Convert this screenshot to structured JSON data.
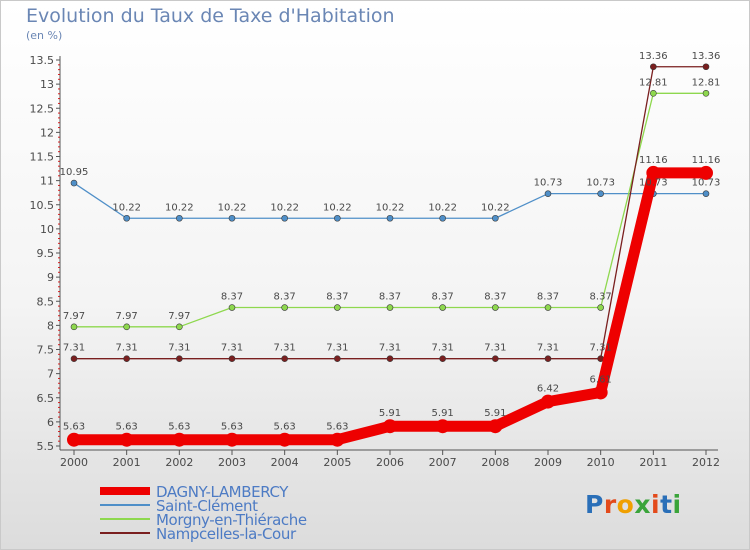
{
  "header": {
    "title": "Evolution du Taux de Taxe d'Habitation",
    "subtitle": "(en %)"
  },
  "brand": {
    "logo_text": "Proxiti",
    "letter_colors": [
      "#2a6fb8",
      "#e34a1b",
      "#f0a000",
      "#3aa43a",
      "#e34a1b",
      "#2a6fb8",
      "#3aa43a"
    ]
  },
  "colors": {
    "axis": "#555555",
    "grid_tick_red": "#d02020"
  },
  "chart_data": {
    "type": "line",
    "title": "Evolution du Taux de Taxe d'Habitation",
    "ylabel": "(en %)",
    "xlabel": "",
    "x": [
      "2000",
      "2001",
      "2002",
      "2003",
      "2004",
      "2005",
      "2006",
      "2007",
      "2008",
      "2009",
      "2010",
      "2011",
      "2012"
    ],
    "ylim": [
      5.5,
      13.5
    ],
    "yticks": [
      "5.5",
      "6",
      "6.5",
      "7",
      "7.5",
      "8",
      "8.5",
      "9",
      "9.5",
      "10",
      "10.5",
      "11",
      "11.5",
      "12",
      "12.5",
      "13",
      "13.5"
    ],
    "grid": false,
    "legend_position": "bottom-left",
    "series": [
      {
        "name": "DAGNY-LAMBERCY",
        "color": "#ee0000",
        "bold": true,
        "values": [
          5.63,
          5.63,
          5.63,
          5.63,
          5.63,
          5.63,
          5.91,
          5.91,
          5.91,
          6.42,
          6.61,
          11.16,
          11.16
        ],
        "labels": [
          "5.63",
          "5.63",
          "5.63",
          "5.63",
          "5.63",
          "5.63",
          "5.91",
          "5.91",
          "5.91",
          "6.42",
          "6.61",
          "11.16",
          "11.16"
        ]
      },
      {
        "name": "Saint-Clément",
        "color": "#4f8fc8",
        "bold": false,
        "values": [
          10.95,
          10.22,
          10.22,
          10.22,
          10.22,
          10.22,
          10.22,
          10.22,
          10.22,
          10.73,
          10.73,
          10.73,
          10.73
        ],
        "labels": [
          "10.95",
          "10.22",
          "10.22",
          "10.22",
          "10.22",
          "10.22",
          "10.22",
          "10.22",
          "10.22",
          "10.73",
          "10.73",
          "10.73",
          "10.73"
        ]
      },
      {
        "name": "Morgny-en-Thiérache",
        "color": "#8ed84e",
        "bold": false,
        "values": [
          7.97,
          7.97,
          7.97,
          8.37,
          8.37,
          8.37,
          8.37,
          8.37,
          8.37,
          8.37,
          8.37,
          12.81,
          12.81
        ],
        "labels": [
          "7.97",
          "7.97",
          "7.97",
          "8.37",
          "8.37",
          "8.37",
          "8.37",
          "8.37",
          "8.37",
          "8.37",
          "8.37",
          "12.81",
          "12.81"
        ]
      },
      {
        "name": "Nampcelles-la-Cour",
        "color": "#7a1f1f",
        "bold": false,
        "values": [
          7.31,
          7.31,
          7.31,
          7.31,
          7.31,
          7.31,
          7.31,
          7.31,
          7.31,
          7.31,
          7.31,
          13.36,
          13.36
        ],
        "labels": [
          "7.31",
          "7.31",
          "7.31",
          "7.31",
          "7.31",
          "7.31",
          "7.31",
          "7.31",
          "7.31",
          "7.31",
          "7.31",
          "13.36",
          "13.36"
        ]
      }
    ]
  }
}
